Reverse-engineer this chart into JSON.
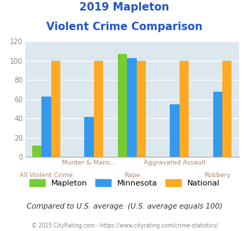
{
  "title_line1": "2019 Mapleton",
  "title_line2": "Violent Crime Comparison",
  "title_color": "#2255cc",
  "categories": [
    "All Violent Crime",
    "Murder & Mans...",
    "Rape",
    "Aggravated Assault",
    "Robbery"
  ],
  "series": {
    "Mapleton": [
      12,
      0,
      107,
      0,
      0
    ],
    "Minnesota": [
      63,
      42,
      103,
      55,
      68
    ],
    "National": [
      100,
      100,
      100,
      100,
      100
    ]
  },
  "colors": {
    "Mapleton": "#77cc33",
    "Minnesota": "#3399ee",
    "National": "#ffaa22"
  },
  "ylim": [
    0,
    120
  ],
  "yticks": [
    0,
    20,
    40,
    60,
    80,
    100,
    120
  ],
  "plot_bg": "#dde8ee",
  "subtitle_note": "Compared to U.S. average. (U.S. average equals 100)",
  "footer": "© 2025 CityRating.com - https://www.cityrating.com/crime-statistics/",
  "subtitle_color": "#333333",
  "footer_color": "#888888",
  "xlabel_top_color": "#aa8877",
  "xlabel_bot_color": "#aa8877",
  "grid_color": "#ffffff",
  "xlabel_top": [
    "",
    "Murder & Mans...",
    "",
    "Aggravated Assault",
    ""
  ],
  "xlabel_bot": [
    "All Violent Crime",
    "",
    "Rape",
    "",
    "Robbery"
  ]
}
